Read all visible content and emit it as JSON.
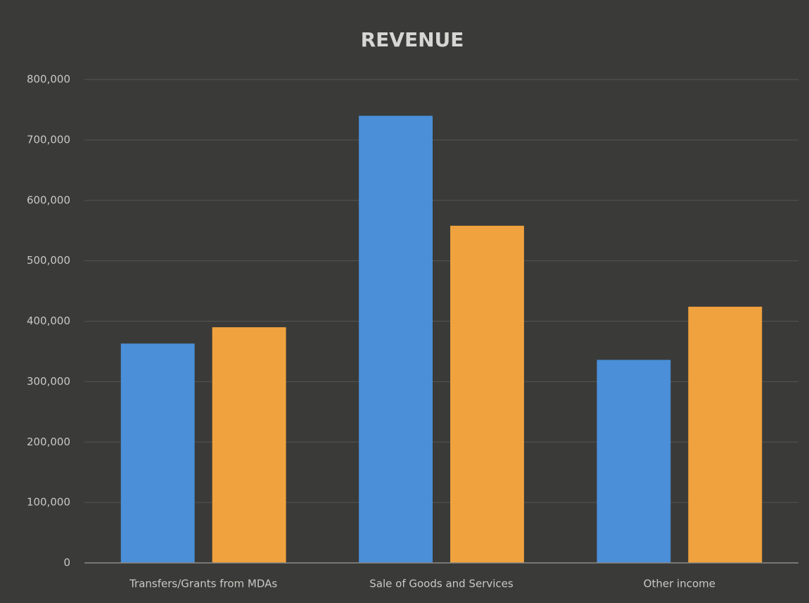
{
  "chart_data": {
    "type": "bar",
    "title": "REVENUE",
    "categories": [
      "Transfers/Grants from MDAs",
      "Sale of Goods and Services",
      "Other income"
    ],
    "series": [
      {
        "color": "#4a8fd8",
        "values": [
          363000,
          740000,
          336000
        ]
      },
      {
        "color": "#f0a23e",
        "values": [
          390000,
          558000,
          424000
        ]
      }
    ],
    "ylim": [
      0,
      800000
    ],
    "yticks": [
      0,
      {
        "value": 100000,
        "label": "100,000"
      },
      {
        "value": 200000,
        "label": "200,000"
      },
      {
        "value": 300000,
        "label": "300,000"
      },
      {
        "value": 400000,
        "label": "400,000"
      },
      {
        "value": 500000,
        "label": "500,000"
      },
      {
        "value": 600000,
        "label": "600,000"
      },
      {
        "value": 700000,
        "label": "700,000"
      },
      {
        "value": 800000,
        "label": "800,000"
      }
    ],
    "grid": true
  }
}
